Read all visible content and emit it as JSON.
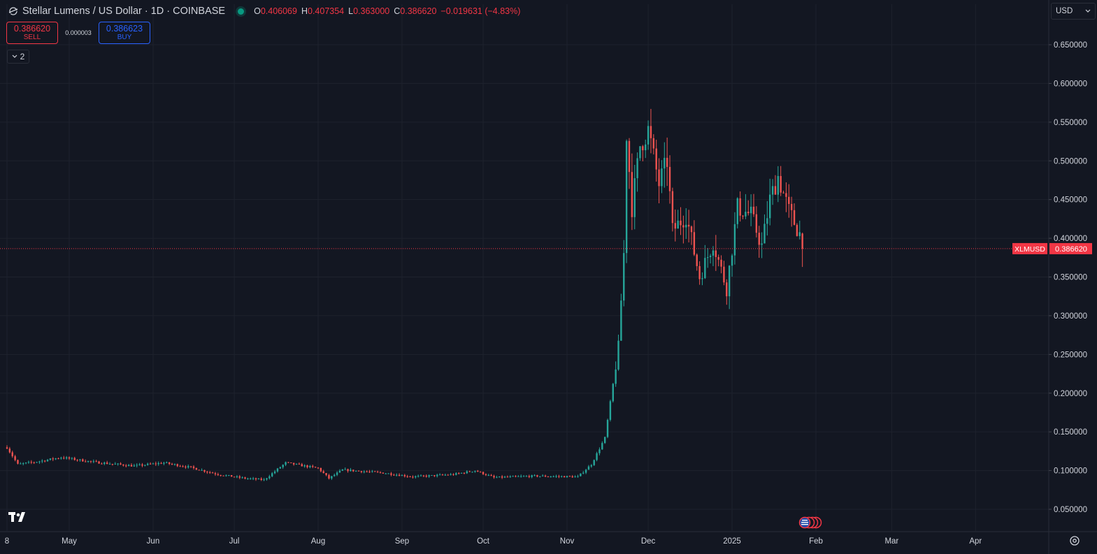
{
  "legend": {
    "title": "Stellar Lumens / US Dollar · 1D · COINBASE",
    "open_key": "O",
    "open": "0.406069",
    "high_key": "H",
    "high": "0.407354",
    "low_key": "L",
    "low": "0.363000",
    "close_key": "C",
    "close": "0.386620",
    "change": "−0.019631 (−4.83%)"
  },
  "trade": {
    "sell_price": "0.386620",
    "sell_label": "SELL",
    "spread": "0.000003",
    "buy_price": "0.386623",
    "buy_label": "BUY"
  },
  "indicators_count": "2",
  "currency": "USD",
  "price_tag": {
    "symbol": "XLMUSD",
    "value": "0.386620"
  },
  "colors": {
    "background": "#131722",
    "up": "#26a69a",
    "down": "#ef5350",
    "grid": "#1e222d",
    "axis_text": "#d1d4dc",
    "price_line": "#f23645"
  },
  "chart_data": {
    "type": "candlestick",
    "symbol": "XLMUSD",
    "interval": "1D",
    "x_labels": [
      "8",
      "May",
      "Jun",
      "Jul",
      "Aug",
      "Sep",
      "Oct",
      "Nov",
      "Dec",
      "2025",
      "Feb",
      "Mar",
      "Apr"
    ],
    "y_ticks": [
      "0.050000",
      "0.100000",
      "0.150000",
      "0.200000",
      "0.250000",
      "0.300000",
      "0.350000",
      "0.400000",
      "0.450000",
      "0.500000",
      "0.550000",
      "0.600000",
      "0.650000"
    ],
    "ylim": [
      0.02,
      0.68
    ],
    "last_price": 0.38662,
    "close_series": [
      {
        "date": "2024-04-08",
        "close": 0.13
      },
      {
        "date": "2024-04-12",
        "close": 0.108
      },
      {
        "date": "2024-04-20",
        "close": 0.112
      },
      {
        "date": "2024-04-28",
        "close": 0.117
      },
      {
        "date": "2024-05-10",
        "close": 0.111
      },
      {
        "date": "2024-05-25",
        "close": 0.106
      },
      {
        "date": "2024-06-05",
        "close": 0.11
      },
      {
        "date": "2024-06-15",
        "close": 0.104
      },
      {
        "date": "2024-06-25",
        "close": 0.095
      },
      {
        "date": "2024-07-05",
        "close": 0.09
      },
      {
        "date": "2024-07-12",
        "close": 0.088
      },
      {
        "date": "2024-07-20",
        "close": 0.11
      },
      {
        "date": "2024-08-01",
        "close": 0.103
      },
      {
        "date": "2024-08-05",
        "close": 0.09
      },
      {
        "date": "2024-08-10",
        "close": 0.101
      },
      {
        "date": "2024-08-25",
        "close": 0.097
      },
      {
        "date": "2024-09-05",
        "close": 0.092
      },
      {
        "date": "2024-09-20",
        "close": 0.095
      },
      {
        "date": "2024-09-28",
        "close": 0.1
      },
      {
        "date": "2024-10-05",
        "close": 0.091
      },
      {
        "date": "2024-10-20",
        "close": 0.093
      },
      {
        "date": "2024-11-05",
        "close": 0.092
      },
      {
        "date": "2024-11-10",
        "close": 0.108
      },
      {
        "date": "2024-11-15",
        "close": 0.142
      },
      {
        "date": "2024-11-18",
        "close": 0.21
      },
      {
        "date": "2024-11-20",
        "close": 0.26
      },
      {
        "date": "2024-11-22",
        "close": 0.38
      },
      {
        "date": "2024-11-23",
        "close": 0.535
      },
      {
        "date": "2024-11-25",
        "close": 0.44
      },
      {
        "date": "2024-11-28",
        "close": 0.52
      },
      {
        "date": "2024-12-01",
        "close": 0.54
      },
      {
        "date": "2024-12-05",
        "close": 0.47
      },
      {
        "date": "2024-12-08",
        "close": 0.5
      },
      {
        "date": "2024-12-10",
        "close": 0.41
      },
      {
        "date": "2024-12-15",
        "close": 0.43
      },
      {
        "date": "2024-12-20",
        "close": 0.35
      },
      {
        "date": "2024-12-25",
        "close": 0.395
      },
      {
        "date": "2024-12-30",
        "close": 0.335
      },
      {
        "date": "2025-01-03",
        "close": 0.44
      },
      {
        "date": "2025-01-08",
        "close": 0.43
      },
      {
        "date": "2025-01-12",
        "close": 0.39
      },
      {
        "date": "2025-01-15",
        "close": 0.45
      },
      {
        "date": "2025-01-18",
        "close": 0.48
      },
      {
        "date": "2025-01-22",
        "close": 0.435
      },
      {
        "date": "2025-01-26",
        "close": 0.406
      },
      {
        "date": "2025-01-27",
        "close": 0.38662
      }
    ]
  }
}
